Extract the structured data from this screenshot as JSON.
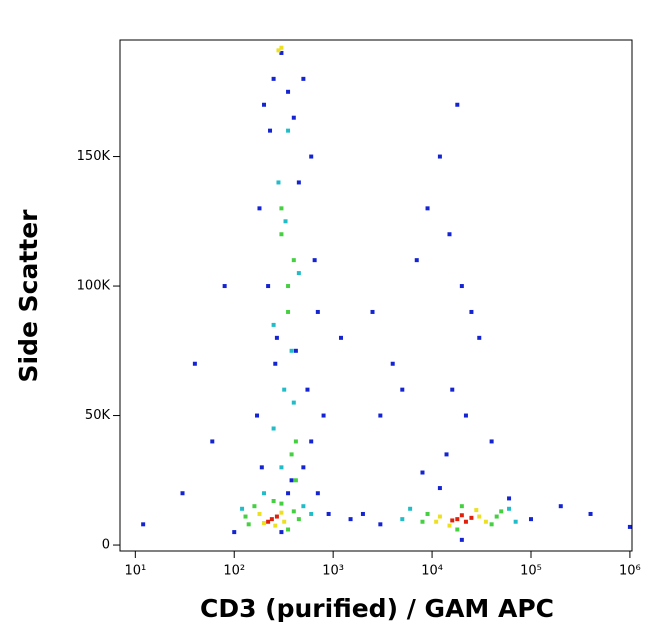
{
  "chart_data": {
    "type": "scatter",
    "xlabel": "CD3 (purified) / GAM APC",
    "ylabel": "Side Scatter",
    "xscale": "log",
    "xlim": [
      7,
      1050000
    ],
    "ylim": [
      -2300,
      195000
    ],
    "xticks": [
      {
        "value": 10,
        "label": "10¹"
      },
      {
        "value": 100,
        "label": "10²"
      },
      {
        "value": 1000,
        "label": "10³"
      },
      {
        "value": 10000,
        "label": "10⁴"
      },
      {
        "value": 100000,
        "label": "10⁵"
      },
      {
        "value": 1000000,
        "label": "10⁶"
      }
    ],
    "yticks": [
      0,
      {
        "value": 50000,
        "label": "50K"
      },
      {
        "value": 100000,
        "label": "100K"
      },
      {
        "value": 150000,
        "label": "150K"
      }
    ],
    "series": [
      {
        "color": "#1424d2",
        "x": [
          100,
          60,
          40,
          30,
          12,
          80,
          700,
          800,
          900,
          600,
          250,
          200,
          180,
          220,
          300,
          350,
          400,
          500,
          550,
          700,
          650,
          260,
          380,
          450,
          170,
          190,
          230,
          270,
          300,
          350,
          420,
          500,
          600,
          1500,
          2000,
          3000,
          4000,
          2500,
          5000,
          7000,
          9000,
          12000,
          15000,
          18000,
          20000,
          25000,
          30000,
          40000,
          14000,
          22000,
          12000,
          100000,
          200000,
          400000,
          1000000,
          8000,
          60000,
          16000,
          20000,
          3000,
          1200
        ],
        "values": [
          5000,
          40000,
          70000,
          20000,
          8000,
          100000,
          20000,
          50000,
          12000,
          150000,
          180000,
          170000,
          130000,
          100000,
          190000,
          175000,
          165000,
          180000,
          60000,
          90000,
          110000,
          70000,
          25000,
          140000,
          50000,
          30000,
          160000,
          80000,
          5000,
          20000,
          75000,
          30000,
          40000,
          10000,
          12000,
          8000,
          70000,
          90000,
          60000,
          110000,
          130000,
          150000,
          120000,
          170000,
          100000,
          90000,
          80000,
          40000,
          35000,
          50000,
          22000,
          10000,
          15000,
          12000,
          7000,
          28000,
          18000,
          60000,
          2000,
          50000,
          80000
        ]
      },
      {
        "color": "#20bcc8",
        "x": [
          120,
          500,
          600,
          200,
          250,
          320,
          380,
          450,
          280,
          350,
          300,
          400,
          6000,
          60000,
          70000,
          5000,
          250,
          330
        ],
        "values": [
          14000,
          15000,
          12000,
          20000,
          45000,
          60000,
          75000,
          105000,
          140000,
          160000,
          30000,
          55000,
          14000,
          14000,
          9000,
          10000,
          85000,
          125000
        ]
      },
      {
        "color": "#44d040",
        "x": [
          140,
          400,
          160,
          350,
          450,
          130,
          300,
          250,
          350,
          400,
          380,
          420,
          300,
          350,
          9000,
          45000,
          40000,
          8000,
          50000,
          20000,
          18000,
          300,
          420
        ],
        "values": [
          8000,
          13000,
          15000,
          6000,
          10000,
          11000,
          16000,
          17000,
          100000,
          110000,
          35000,
          40000,
          120000,
          90000,
          12000,
          11000,
          8000,
          9000,
          13000,
          15000,
          6000,
          130000,
          25000
        ]
      },
      {
        "color": "#ece020",
        "x": [
          180,
          320,
          260,
          200,
          300,
          12000,
          30000,
          15000,
          28000,
          35000,
          11000,
          300,
          280
        ],
        "values": [
          12000,
          9000,
          7500,
          8500,
          12500,
          11000,
          11000,
          7500,
          13500,
          9000,
          9000,
          192000,
          191000
        ]
      },
      {
        "color": "#e0200a",
        "x": [
          240,
          270,
          220,
          18000,
          22000,
          20000,
          25000,
          16000
        ],
        "values": [
          10000,
          11000,
          9000,
          10000,
          9000,
          11500,
          10500,
          9500
        ]
      }
    ]
  }
}
